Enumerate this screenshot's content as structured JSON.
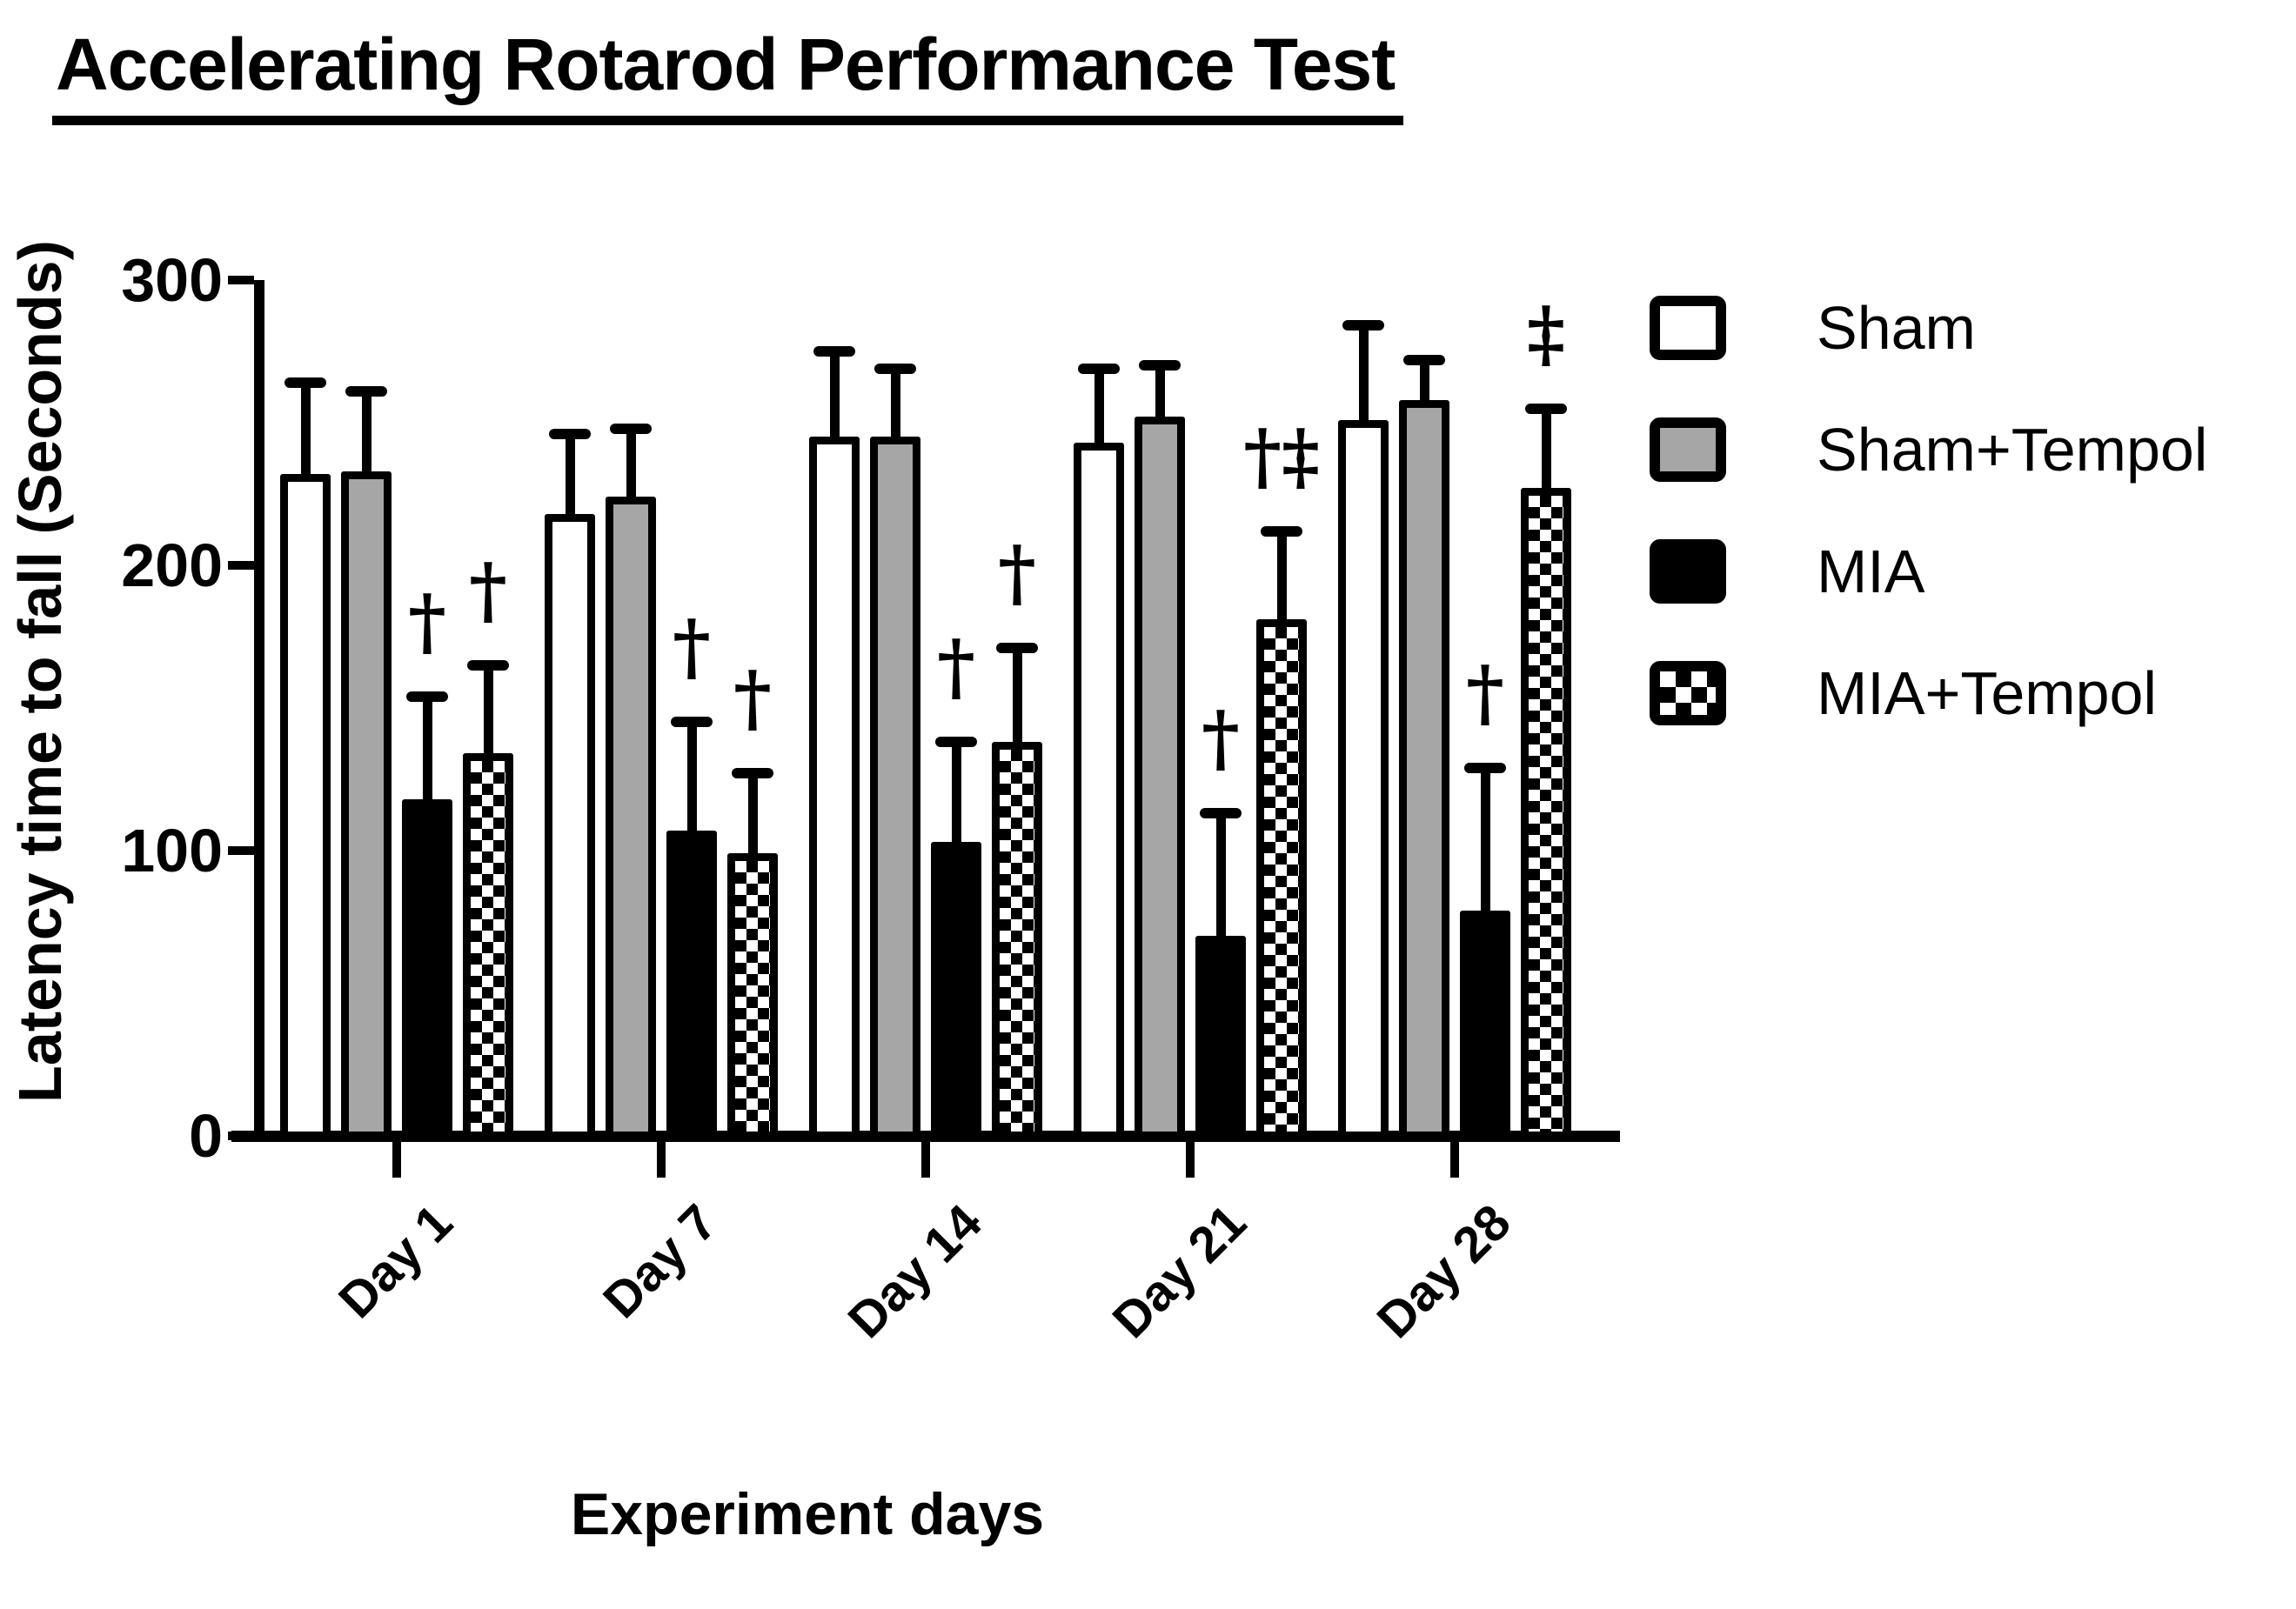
{
  "chart_data": {
    "type": "bar",
    "title": "Accelerating Rotarod Performance Test",
    "xlabel": "Experiment days",
    "ylabel": "Latency time to fall (Seconds)",
    "ylim": [
      0,
      300
    ],
    "yticks": [
      0,
      100,
      200,
      300
    ],
    "categories": [
      "Day 1",
      "Day 7",
      "Day 14",
      "Day 21",
      "Day 28"
    ],
    "grid": false,
    "legend_position": "right",
    "error_bars": "upper SEM caps",
    "series": [
      {
        "name": "Sham",
        "fill": "#ffffff",
        "pattern": "solid",
        "values": [
          232,
          218,
          245,
          243,
          251
        ],
        "errors": [
          32,
          28,
          30,
          26,
          33
        ],
        "sig": [
          "",
          "",
          "",
          "",
          ""
        ]
      },
      {
        "name": "Sham+Tempol",
        "fill": "#a6a6a6",
        "pattern": "solid",
        "values": [
          233,
          224,
          245,
          252,
          258
        ],
        "errors": [
          28,
          24,
          24,
          18,
          14
        ],
        "sig": [
          "",
          "",
          "",
          "",
          ""
        ]
      },
      {
        "name": "MIA",
        "fill": "#000000",
        "pattern": "solid",
        "values": [
          118,
          107,
          103,
          70,
          79
        ],
        "errors": [
          36,
          38,
          35,
          43,
          50
        ],
        "sig": [
          "†",
          "†",
          "†",
          "†",
          "†"
        ]
      },
      {
        "name": "MIA+Tempol",
        "fill": "#000000",
        "pattern": "checker",
        "values": [
          134,
          99,
          138,
          181,
          227
        ],
        "errors": [
          31,
          28,
          33,
          31,
          28
        ],
        "sig": [
          "†",
          "†",
          "†",
          "†‡",
          "‡"
        ]
      }
    ]
  }
}
